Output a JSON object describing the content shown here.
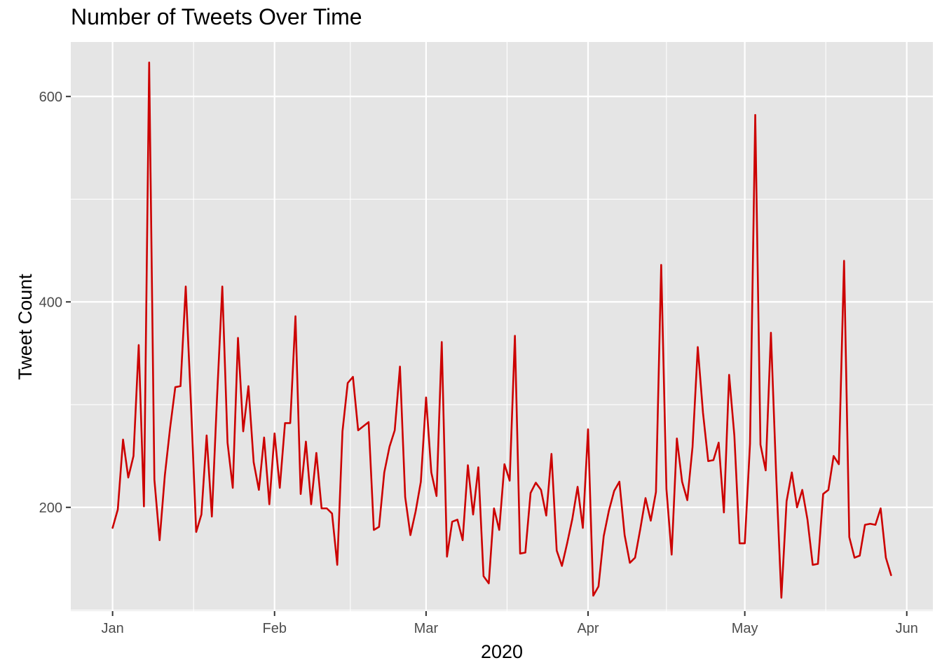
{
  "chart_data": {
    "type": "line",
    "title": "Number of Tweets Over Time",
    "xlabel": "2020",
    "ylabel": "Tweet Count",
    "start_date": "2020-01-01",
    "x_ticks": [
      {
        "date": "2020-01-01",
        "label": "Jan"
      },
      {
        "date": "2020-02-01",
        "label": "Feb"
      },
      {
        "date": "2020-03-01",
        "label": "Mar"
      },
      {
        "date": "2020-04-01",
        "label": "Apr"
      },
      {
        "date": "2020-05-01",
        "label": "May"
      },
      {
        "date": "2020-06-01",
        "label": "Jun"
      }
    ],
    "xlim": [
      "2019-12-24",
      "2020-06-06"
    ],
    "y_ticks": [
      200,
      400,
      600
    ],
    "ylim": [
      99,
      653
    ],
    "grid": true,
    "line_color": "#cc0000",
    "panel_color": "#e5e5e5",
    "values": [
      180,
      198,
      266,
      229,
      250,
      358,
      201,
      633,
      227,
      168,
      231,
      277,
      317,
      318,
      415,
      301,
      176,
      193,
      270,
      191,
      308,
      415,
      263,
      219,
      365,
      274,
      318,
      244,
      217,
      268,
      203,
      272,
      219,
      282,
      282,
      386,
      213,
      264,
      203,
      253,
      199,
      199,
      194,
      144,
      274,
      321,
      327,
      275,
      279,
      283,
      178,
      181,
      234,
      259,
      275,
      337,
      210,
      173,
      196,
      225,
      307,
      234,
      211,
      361,
      152,
      186,
      188,
      168,
      241,
      193,
      239,
      133,
      126,
      199,
      178,
      242,
      226,
      367,
      155,
      156,
      214,
      224,
      217,
      192,
      252,
      158,
      143,
      165,
      189,
      220,
      180,
      276,
      114,
      123,
      172,
      197,
      216,
      225,
      173,
      146,
      151,
      179,
      209,
      187,
      215,
      436,
      218,
      154,
      267,
      225,
      207,
      259,
      356,
      292,
      245,
      246,
      263,
      195,
      329,
      270,
      165,
      165,
      262,
      582,
      261,
      236,
      370,
      232,
      112,
      206,
      234,
      200,
      217,
      188,
      144,
      145,
      213,
      217,
      250,
      242,
      440,
      171,
      151,
      153,
      183,
      184,
      183,
      199,
      151,
      134
    ]
  }
}
